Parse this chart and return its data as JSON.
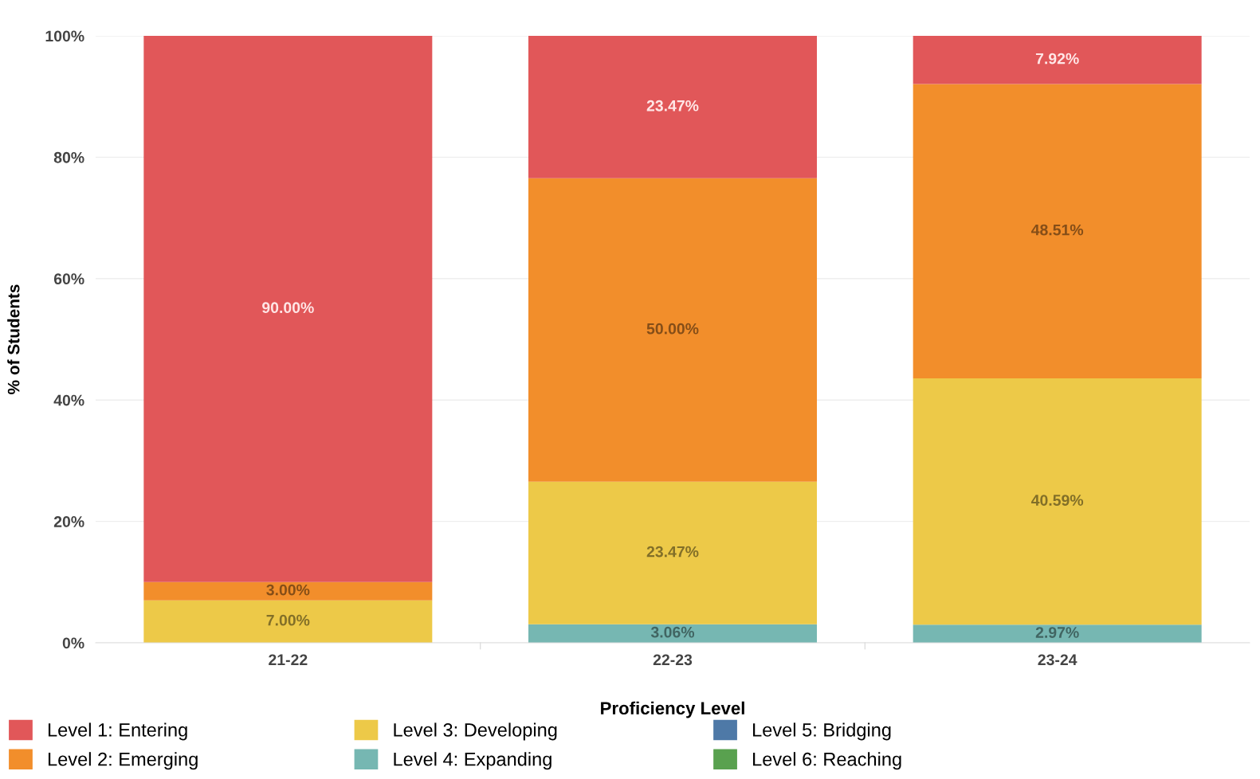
{
  "chart_data": {
    "type": "bar",
    "stacked": true,
    "xlabel": "Proficiency Level",
    "ylabel": "% of Students",
    "categories": [
      "21-22",
      "22-23",
      "23-24"
    ],
    "series": [
      {
        "name": "Level 6: Reaching",
        "color": "#59a14f",
        "values": [
          0,
          0,
          0
        ],
        "value_labels": [
          null,
          null,
          null
        ]
      },
      {
        "name": "Level 5: Bridging",
        "color": "#4e79a7",
        "values": [
          0,
          0,
          0
        ],
        "value_labels": [
          null,
          null,
          null
        ]
      },
      {
        "name": "Level 4: Expanding",
        "color": "#76b7b2",
        "values": [
          0,
          3.06,
          2.97
        ],
        "value_labels": [
          null,
          "3.06%",
          "2.97%"
        ]
      },
      {
        "name": "Level 3: Developing",
        "color": "#edc948",
        "values": [
          7.0,
          23.47,
          40.59
        ],
        "value_labels": [
          "7.00%",
          "23.47%",
          "40.59%"
        ]
      },
      {
        "name": "Level 2: Emerging",
        "color": "#f28e2b",
        "values": [
          3.0,
          50.0,
          48.51
        ],
        "value_labels": [
          "3.00%",
          "50.00%",
          "48.51%"
        ]
      },
      {
        "name": "Level 1: Entering",
        "color": "#e15759",
        "values": [
          90.0,
          23.47,
          7.92
        ],
        "value_labels": [
          "90.00%",
          "23.47%",
          "7.92%"
        ]
      }
    ],
    "ylim": [
      0,
      100
    ],
    "yticks": [
      {
        "value": 0,
        "label": "0%"
      },
      {
        "value": 20,
        "label": "20%"
      },
      {
        "value": 40,
        "label": "40%"
      },
      {
        "value": 60,
        "label": "60%"
      },
      {
        "value": 80,
        "label": "80%"
      },
      {
        "value": 100,
        "label": "100%"
      }
    ],
    "grid": "y",
    "legend": "bottom"
  }
}
